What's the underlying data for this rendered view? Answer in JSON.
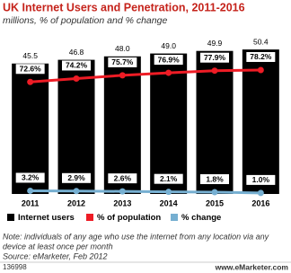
{
  "chart_data": {
    "type": "bar",
    "title": "UK Internet Users and Penetration, 2011-2016",
    "subtitle": "millions, % of population and % change",
    "categories": [
      "2011",
      "2012",
      "2013",
      "2014",
      "2015",
      "2016"
    ],
    "ylim": [
      0,
      52
    ],
    "y2lim": [
      20,
      90
    ],
    "y3lim": [
      0,
      150
    ],
    "series": [
      {
        "name": "Internet users",
        "color": "#000000",
        "type": "bar",
        "values": [
          45.5,
          46.8,
          48.0,
          49.0,
          49.9,
          50.4
        ],
        "value_labels": [
          "45.5",
          "46.8",
          "48.0",
          "49.0",
          "49.9",
          "50.4"
        ]
      },
      {
        "name": "% of population",
        "color": "#ee1c25",
        "type": "line",
        "axis": "y2",
        "values": [
          72.6,
          74.2,
          75.7,
          76.9,
          77.9,
          78.2
        ],
        "value_labels": [
          "72.6%",
          "74.2%",
          "75.7%",
          "76.9%",
          "77.9%",
          "78.2%"
        ]
      },
      {
        "name": "% change",
        "color": "#76afd1",
        "type": "line",
        "axis": "y3",
        "values": [
          3.2,
          2.9,
          2.6,
          2.1,
          1.8,
          1.0
        ],
        "value_labels": [
          "3.2%",
          "2.9%",
          "2.6%",
          "2.1%",
          "1.8%",
          "1.0%"
        ]
      }
    ],
    "note": [
      "Note: individuals of any age who use the internet from any location via any",
      "device at least once per month"
    ],
    "source": "Source: eMarketer, Feb 2012",
    "chart_id": "136998",
    "site": "www.eMarketer.com"
  }
}
